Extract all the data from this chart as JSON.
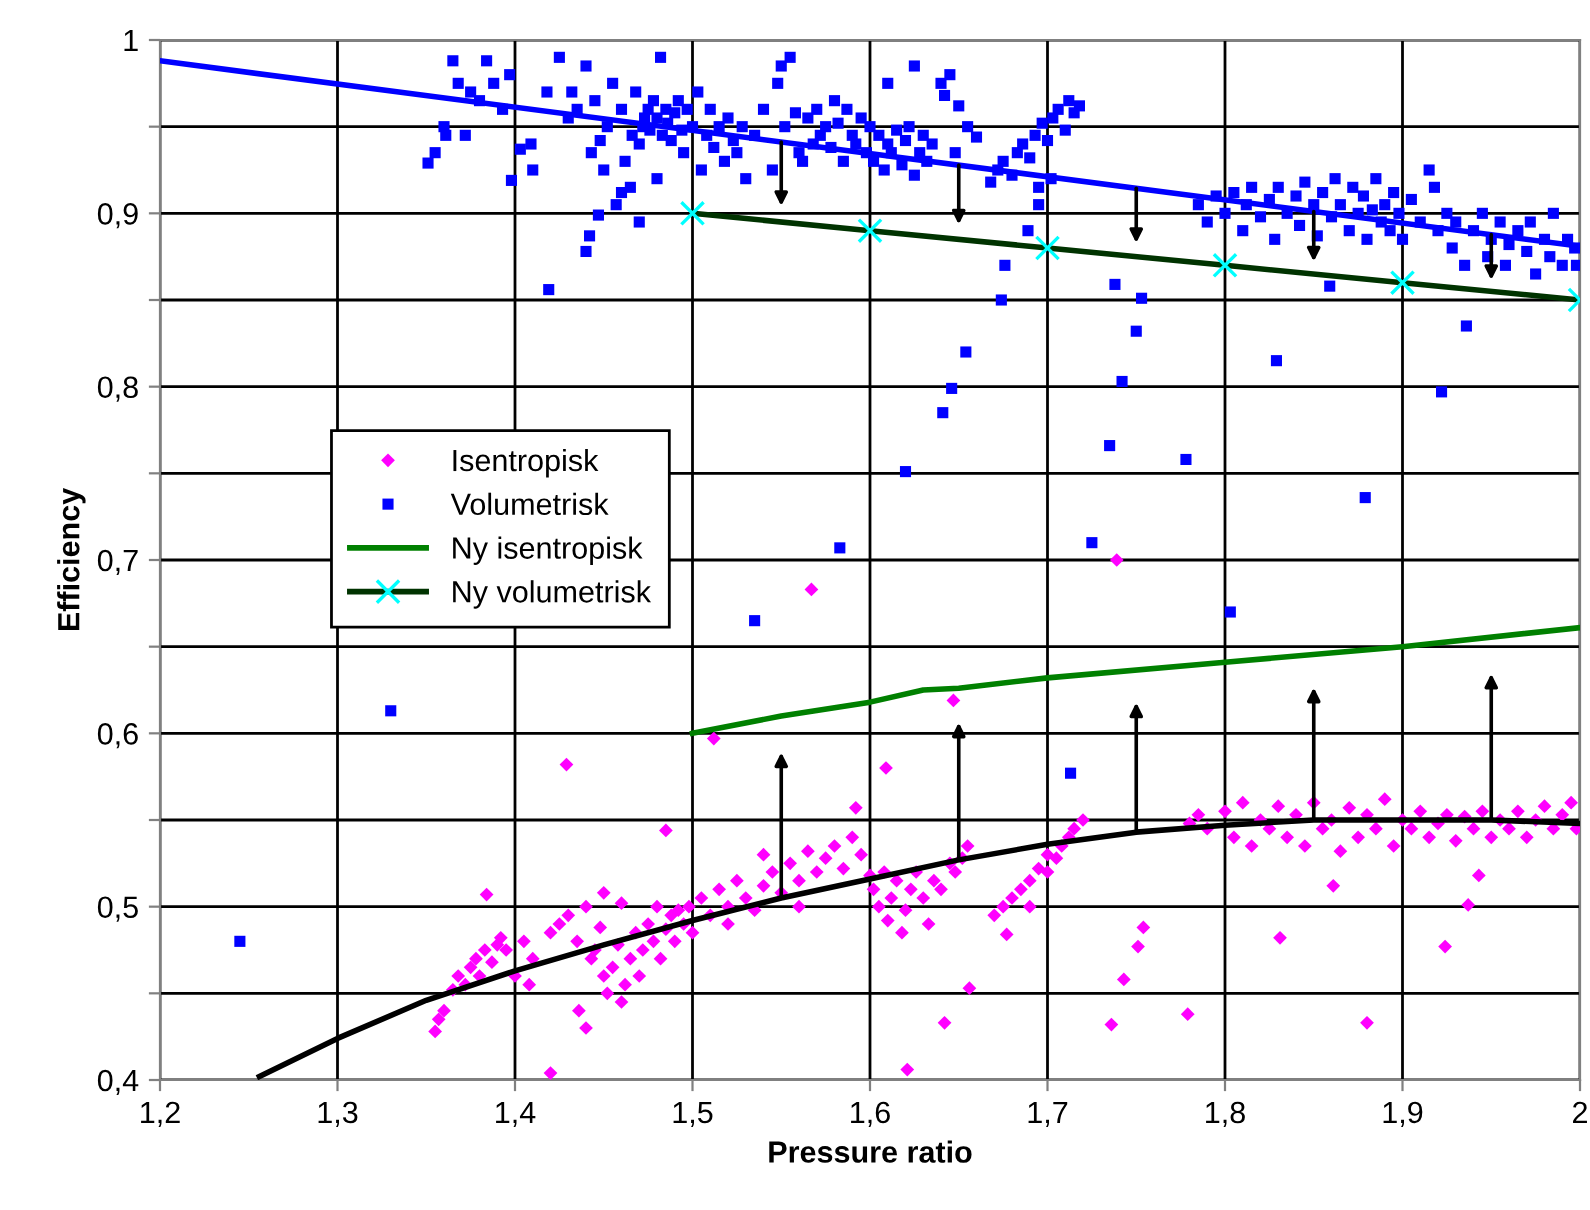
{
  "chart_data": {
    "type": "scatter",
    "xlabel": "Pressure ratio",
    "ylabel": "Efficiency",
    "xlim": [
      1.2,
      2
    ],
    "ylim": [
      0.4,
      1
    ],
    "xticks": [
      {
        "value": 1.2,
        "label": "1,2"
      },
      {
        "value": 1.3,
        "label": "1,3"
      },
      {
        "value": 1.4,
        "label": "1,4"
      },
      {
        "value": 1.5,
        "label": "1,5"
      },
      {
        "value": 1.6,
        "label": "1,6"
      },
      {
        "value": 1.7,
        "label": "1,7"
      },
      {
        "value": 1.8,
        "label": "1,8"
      },
      {
        "value": 1.9,
        "label": "1,9"
      },
      {
        "value": 2,
        "label": "2"
      }
    ],
    "yticks": [
      {
        "value": 0.4,
        "label": "0,4"
      },
      {
        "value": 0.45,
        "label": null
      },
      {
        "value": 0.5,
        "label": "0,5"
      },
      {
        "value": 0.55,
        "label": null
      },
      {
        "value": 0.6,
        "label": "0,6"
      },
      {
        "value": 0.65,
        "label": null
      },
      {
        "value": 0.7,
        "label": "0,7"
      },
      {
        "value": 0.75,
        "label": null
      },
      {
        "value": 0.8,
        "label": "0,8"
      },
      {
        "value": 0.85,
        "label": null
      },
      {
        "value": 0.9,
        "label": "0,9"
      },
      {
        "value": 0.95,
        "label": null
      },
      {
        "value": 1,
        "label": "1"
      }
    ],
    "grid": true,
    "legend": "center left",
    "series": [
      {
        "name": "Isentropisk",
        "marker": "diamond",
        "color": "#ff00ff",
        "x": [
          1.355,
          1.357,
          1.36,
          1.365,
          1.368,
          1.372,
          1.375,
          1.378,
          1.38,
          1.383,
          1.387,
          1.39,
          1.392,
          1.395,
          1.4,
          1.405,
          1.408,
          1.41,
          1.42,
          1.425,
          1.43,
          1.435,
          1.44,
          1.443,
          1.445,
          1.448,
          1.45,
          1.452,
          1.455,
          1.458,
          1.46,
          1.462,
          1.465,
          1.468,
          1.47,
          1.472,
          1.475,
          1.478,
          1.48,
          1.482,
          1.485,
          1.488,
          1.49,
          1.492,
          1.495,
          1.498,
          1.5,
          1.44,
          1.436,
          1.45,
          1.46,
          1.505,
          1.51,
          1.515,
          1.52,
          1.525,
          1.53,
          1.535,
          1.54,
          1.545,
          1.55,
          1.555,
          1.56,
          1.565,
          1.57,
          1.575,
          1.58,
          1.585,
          1.59,
          1.595,
          1.6,
          1.54,
          1.56,
          1.52,
          1.602,
          1.605,
          1.608,
          1.61,
          1.612,
          1.615,
          1.618,
          1.62,
          1.623,
          1.626,
          1.63,
          1.633,
          1.636,
          1.64,
          1.645,
          1.648,
          1.652,
          1.655,
          1.67,
          1.675,
          1.68,
          1.685,
          1.69,
          1.695,
          1.7,
          1.705,
          1.708,
          1.712,
          1.715,
          1.72,
          1.69,
          1.7,
          1.78,
          1.785,
          1.79,
          1.8,
          1.805,
          1.81,
          1.815,
          1.82,
          1.825,
          1.83,
          1.835,
          1.84,
          1.845,
          1.85,
          1.855,
          1.86,
          1.865,
          1.87,
          1.875,
          1.88,
          1.885,
          1.89,
          1.895,
          1.9,
          1.905,
          1.91,
          1.915,
          1.92,
          1.925,
          1.93,
          1.935,
          1.94,
          1.945,
          1.95,
          1.955,
          1.96,
          1.965,
          1.97,
          1.975,
          1.98,
          1.985,
          1.99,
          1.995,
          1.998,
          1.609,
          1.621,
          1.642,
          1.656,
          1.677,
          1.647,
          1.736,
          1.743,
          1.751,
          1.754,
          1.779,
          1.831,
          1.861,
          1.88,
          1.924,
          1.937,
          1.943,
          1.42,
          1.429,
          1.384,
          1.485,
          1.567,
          1.512,
          1.592,
          1.739
        ],
        "values": [
          0.428,
          0.435,
          0.44,
          0.452,
          0.46,
          0.455,
          0.465,
          0.47,
          0.46,
          0.475,
          0.468,
          0.478,
          0.482,
          0.475,
          0.46,
          0.48,
          0.455,
          0.47,
          0.485,
          0.49,
          0.495,
          0.48,
          0.5,
          0.47,
          0.475,
          0.488,
          0.46,
          0.45,
          0.465,
          0.478,
          0.445,
          0.455,
          0.47,
          0.485,
          0.46,
          0.475,
          0.49,
          0.48,
          0.5,
          0.47,
          0.487,
          0.495,
          0.48,
          0.498,
          0.49,
          0.5,
          0.485,
          0.43,
          0.44,
          0.508,
          0.502,
          0.505,
          0.495,
          0.51,
          0.5,
          0.515,
          0.505,
          0.498,
          0.512,
          0.52,
          0.508,
          0.525,
          0.515,
          0.532,
          0.52,
          0.528,
          0.535,
          0.522,
          0.54,
          0.53,
          0.518,
          0.53,
          0.5,
          0.49,
          0.51,
          0.5,
          0.52,
          0.492,
          0.505,
          0.515,
          0.485,
          0.498,
          0.51,
          0.52,
          0.505,
          0.49,
          0.515,
          0.51,
          0.525,
          0.52,
          0.528,
          0.535,
          0.495,
          0.5,
          0.505,
          0.51,
          0.515,
          0.522,
          0.53,
          0.528,
          0.535,
          0.54,
          0.545,
          0.55,
          0.5,
          0.52,
          0.548,
          0.553,
          0.545,
          0.555,
          0.54,
          0.56,
          0.535,
          0.55,
          0.545,
          0.558,
          0.54,
          0.553,
          0.535,
          0.56,
          0.545,
          0.55,
          0.532,
          0.557,
          0.54,
          0.553,
          0.545,
          0.562,
          0.535,
          0.55,
          0.545,
          0.555,
          0.54,
          0.548,
          0.553,
          0.538,
          0.552,
          0.545,
          0.555,
          0.54,
          0.55,
          0.545,
          0.555,
          0.54,
          0.55,
          0.558,
          0.545,
          0.553,
          0.56,
          0.545,
          0.58,
          0.406,
          0.433,
          0.453,
          0.484,
          0.619,
          0.432,
          0.458,
          0.477,
          0.488,
          0.438,
          0.482,
          0.512,
          0.433,
          0.477,
          0.501,
          0.518,
          0.404,
          0.582,
          0.507,
          0.544,
          0.683,
          0.597,
          0.557,
          0.7
        ]
      },
      {
        "name": "Volumetrisk",
        "marker": "square",
        "color": "#0000ff",
        "x": [
          1.365,
          1.384,
          1.397,
          1.351,
          1.361,
          1.372,
          1.398,
          1.403,
          1.409,
          1.355,
          1.36,
          1.368,
          1.375,
          1.38,
          1.388,
          1.393,
          1.41,
          1.418,
          1.425,
          1.43,
          1.432,
          1.435,
          1.44,
          1.443,
          1.445,
          1.448,
          1.45,
          1.452,
          1.455,
          1.457,
          1.46,
          1.462,
          1.465,
          1.466,
          1.468,
          1.47,
          1.472,
          1.473,
          1.475,
          1.476,
          1.478,
          1.48,
          1.482,
          1.483,
          1.485,
          1.486,
          1.488,
          1.49,
          1.492,
          1.494,
          1.495,
          1.497,
          1.5,
          1.48,
          1.46,
          1.47,
          1.503,
          1.505,
          1.508,
          1.51,
          1.512,
          1.515,
          1.518,
          1.52,
          1.523,
          1.525,
          1.528,
          1.53,
          1.535,
          1.54,
          1.545,
          1.548,
          1.55,
          1.552,
          1.555,
          1.558,
          1.56,
          1.562,
          1.565,
          1.568,
          1.57,
          1.572,
          1.575,
          1.578,
          1.58,
          1.582,
          1.585,
          1.587,
          1.59,
          1.592,
          1.595,
          1.598,
          1.6,
          1.602,
          1.605,
          1.608,
          1.61,
          1.612,
          1.615,
          1.618,
          1.62,
          1.622,
          1.625,
          1.628,
          1.63,
          1.632,
          1.635,
          1.64,
          1.642,
          1.645,
          1.65,
          1.648,
          1.655,
          1.66,
          1.61,
          1.625,
          1.668,
          1.672,
          1.675,
          1.68,
          1.683,
          1.686,
          1.69,
          1.693,
          1.697,
          1.7,
          1.703,
          1.706,
          1.71,
          1.712,
          1.715,
          1.718,
          1.702,
          1.695,
          1.785,
          1.79,
          1.795,
          1.8,
          1.805,
          1.81,
          1.812,
          1.815,
          1.82,
          1.825,
          1.828,
          1.83,
          1.835,
          1.84,
          1.842,
          1.845,
          1.85,
          1.852,
          1.855,
          1.86,
          1.862,
          1.865,
          1.87,
          1.872,
          1.875,
          1.878,
          1.88,
          1.883,
          1.885,
          1.888,
          1.89,
          1.893,
          1.895,
          1.898,
          1.9,
          1.905,
          1.91,
          1.915,
          1.918,
          1.92,
          1.925,
          1.928,
          1.93,
          1.935,
          1.94,
          1.945,
          1.948,
          1.95,
          1.955,
          1.958,
          1.96,
          1.965,
          1.97,
          1.972,
          1.975,
          1.98,
          1.983,
          1.985,
          1.99,
          1.993,
          1.997,
          1.998,
          1.245,
          1.33,
          1.419,
          1.44,
          1.442,
          1.447,
          1.535,
          1.583,
          1.62,
          1.641,
          1.646,
          1.654,
          1.674,
          1.676,
          1.689,
          1.695,
          1.725,
          1.735,
          1.742,
          1.75,
          1.753,
          1.738,
          1.778,
          1.829,
          1.859,
          1.879,
          1.922,
          1.936,
          1.803,
          1.713
        ],
        "values": [
          0.988,
          0.988,
          0.98,
          0.929,
          0.945,
          0.945,
          0.919,
          0.937,
          0.94,
          0.935,
          0.95,
          0.975,
          0.97,
          0.965,
          0.975,
          0.96,
          0.925,
          0.97,
          0.99,
          0.955,
          0.97,
          0.96,
          0.985,
          0.935,
          0.965,
          0.942,
          0.925,
          0.95,
          0.975,
          0.905,
          0.96,
          0.93,
          0.915,
          0.945,
          0.97,
          0.94,
          0.95,
          0.955,
          0.96,
          0.948,
          0.965,
          0.955,
          0.99,
          0.945,
          0.96,
          0.952,
          0.942,
          0.958,
          0.965,
          0.948,
          0.935,
          0.96,
          0.95,
          0.92,
          0.912,
          0.895,
          0.97,
          0.925,
          0.945,
          0.96,
          0.938,
          0.95,
          0.93,
          0.955,
          0.942,
          0.935,
          0.95,
          0.92,
          0.945,
          0.96,
          0.925,
          0.975,
          0.985,
          0.95,
          0.99,
          0.958,
          0.935,
          0.93,
          0.955,
          0.94,
          0.96,
          0.945,
          0.95,
          0.938,
          0.965,
          0.952,
          0.93,
          0.96,
          0.945,
          0.94,
          0.955,
          0.935,
          0.95,
          0.93,
          0.945,
          0.925,
          0.94,
          0.935,
          0.948,
          0.928,
          0.942,
          0.95,
          0.922,
          0.935,
          0.945,
          0.93,
          0.94,
          0.975,
          0.968,
          0.98,
          0.962,
          0.935,
          0.95,
          0.944,
          0.975,
          0.985,
          0.918,
          0.925,
          0.93,
          0.922,
          0.935,
          0.94,
          0.932,
          0.945,
          0.952,
          0.942,
          0.955,
          0.96,
          0.948,
          0.965,
          0.958,
          0.962,
          0.92,
          0.915,
          0.905,
          0.895,
          0.91,
          0.9,
          0.912,
          0.89,
          0.905,
          0.915,
          0.898,
          0.908,
          0.885,
          0.915,
          0.9,
          0.91,
          0.893,
          0.918,
          0.905,
          0.887,
          0.912,
          0.898,
          0.92,
          0.905,
          0.89,
          0.915,
          0.9,
          0.91,
          0.885,
          0.902,
          0.92,
          0.895,
          0.905,
          0.89,
          0.912,
          0.9,
          0.885,
          0.908,
          0.895,
          0.925,
          0.915,
          0.89,
          0.9,
          0.88,
          0.895,
          0.87,
          0.89,
          0.9,
          0.875,
          0.885,
          0.895,
          0.87,
          0.882,
          0.89,
          0.878,
          0.895,
          0.865,
          0.885,
          0.875,
          0.9,
          0.87,
          0.885,
          0.88,
          0.87,
          0.48,
          0.613,
          0.856,
          0.878,
          0.887,
          0.899,
          0.665,
          0.707,
          0.751,
          0.785,
          0.799,
          0.82,
          0.85,
          0.87,
          0.89,
          0.905,
          0.71,
          0.766,
          0.803,
          0.832,
          0.851,
          0.859,
          0.758,
          0.815,
          0.858,
          0.736,
          0.797,
          0.835,
          0.67,
          0.577
        ]
      },
      {
        "name": "Ny isentropisk",
        "type": "line",
        "marker": "none",
        "color": "#008000",
        "x": [
          1.5,
          1.55,
          1.6,
          1.63,
          1.65,
          1.7,
          1.8,
          1.9,
          2.0
        ],
        "values": [
          0.6,
          0.61,
          0.618,
          0.625,
          0.626,
          0.632,
          0.641,
          0.65,
          0.661
        ]
      },
      {
        "name": "Ny volumetrisk",
        "type": "line",
        "marker": "cross",
        "color": "#003300",
        "colors": [
          "#00ffff",
          "#00ffff",
          "#00ffff",
          "#00ffff",
          "#00ffff",
          "#00ffff"
        ],
        "x": [
          1.5,
          1.6,
          1.7,
          1.8,
          1.9,
          2.0
        ],
        "values": [
          0.9,
          0.89,
          0.88,
          0.87,
          0.86,
          0.85
        ]
      },
      {
        "type": "line",
        "marker": "none",
        "color": "#0000ff",
        "x": [
          1.2,
          2.0
        ],
        "values": [
          0.988,
          0.881
        ]
      },
      {
        "type": "line",
        "marker": "none",
        "color": "#000000",
        "x": [
          1.256,
          1.3,
          1.35,
          1.4,
          1.45,
          1.5,
          1.55,
          1.6,
          1.65,
          1.7,
          1.75,
          1.8,
          1.85,
          1.9,
          1.95,
          2.0
        ],
        "values": [
          0.402,
          0.424,
          0.446,
          0.463,
          0.478,
          0.492,
          0.505,
          0.516,
          0.527,
          0.536,
          0.543,
          0.547,
          0.55,
          0.55,
          0.55,
          0.548
        ]
      }
    ]
  }
}
